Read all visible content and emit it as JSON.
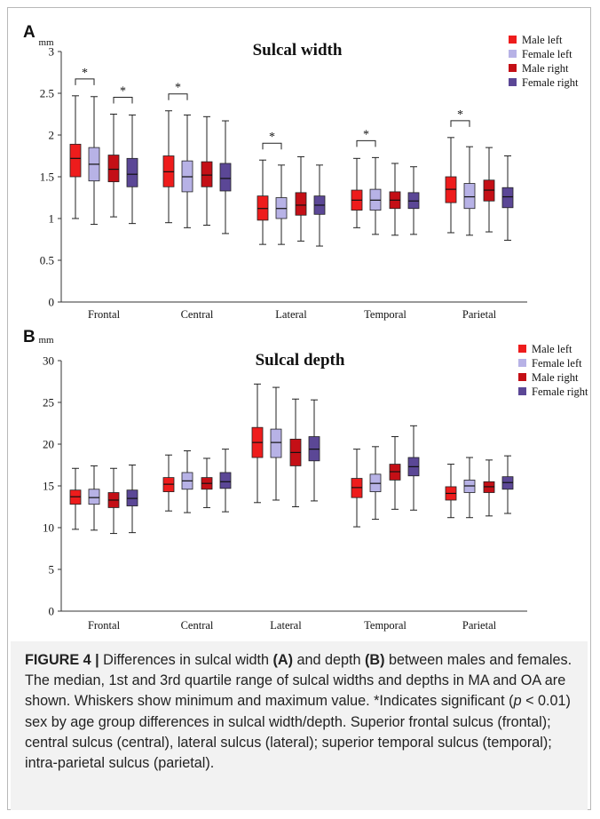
{
  "figure": {
    "panel_a_letter": "A",
    "panel_b_letter": "B",
    "caption": {
      "label": "FIGURE 4 |",
      "text_1": " Differences in sulcal width ",
      "bold_a": "(A)",
      "text_2": " and depth ",
      "bold_b": "(B)",
      "text_3": " between males and females. The median, 1st and 3rd quartile range of sulcal widths and depths in MA and OA are shown. Whiskers show minimum and maximum value. *Indicates significant (",
      "italic_p": "p",
      "text_4": " < 0.01) sex by age group differences in sulcal width/depth. Superior frontal sulcus (frontal); central sulcus (central), lateral sulcus (lateral); superior temporal sulcus (temporal); intra-parietal sulcus (parietal)."
    }
  },
  "chart_data": [
    {
      "type": "box",
      "title": "Sulcal width",
      "ylabel": "mm",
      "ylim": [
        0,
        3
      ],
      "yticks": [
        "0",
        "0.5",
        "1",
        "1.5",
        "2",
        "2.5",
        "3"
      ],
      "ytick_values": [
        0,
        0.5,
        1,
        1.5,
        2,
        2.5,
        3
      ],
      "categories": [
        "Frontal",
        "Central",
        "Lateral",
        "Temporal",
        "Parietal"
      ],
      "legend": {
        "placement": "top-right"
      },
      "significance_marker": "*",
      "series": [
        {
          "name": "Male left",
          "color": "#ee1c1c",
          "boxes": [
            {
              "min": 1.0,
              "q1": 1.5,
              "median": 1.72,
              "q3": 1.89,
              "max": 2.47
            },
            {
              "min": 0.95,
              "q1": 1.38,
              "median": 1.56,
              "q3": 1.75,
              "max": 2.29
            },
            {
              "min": 0.69,
              "q1": 0.98,
              "median": 1.12,
              "q3": 1.27,
              "max": 1.7
            },
            {
              "min": 0.89,
              "q1": 1.1,
              "median": 1.22,
              "q3": 1.34,
              "max": 1.72
            },
            {
              "min": 0.83,
              "q1": 1.19,
              "median": 1.35,
              "q3": 1.5,
              "max": 1.97
            }
          ]
        },
        {
          "name": "Female left",
          "color": "#b7b2e6",
          "boxes": [
            {
              "min": 0.93,
              "q1": 1.45,
              "median": 1.65,
              "q3": 1.85,
              "max": 2.46
            },
            {
              "min": 0.89,
              "q1": 1.32,
              "median": 1.5,
              "q3": 1.69,
              "max": 2.24
            },
            {
              "min": 0.69,
              "q1": 1.0,
              "median": 1.12,
              "q3": 1.25,
              "max": 1.64
            },
            {
              "min": 0.81,
              "q1": 1.1,
              "median": 1.22,
              "q3": 1.35,
              "max": 1.73
            },
            {
              "min": 0.8,
              "q1": 1.12,
              "median": 1.26,
              "q3": 1.42,
              "max": 1.86
            }
          ]
        },
        {
          "name": "Male right",
          "color": "#c40f16",
          "boxes": [
            {
              "min": 1.02,
              "q1": 1.44,
              "median": 1.59,
              "q3": 1.76,
              "max": 2.25
            },
            {
              "min": 0.92,
              "q1": 1.38,
              "median": 1.52,
              "q3": 1.68,
              "max": 2.22
            },
            {
              "min": 0.73,
              "q1": 1.04,
              "median": 1.16,
              "q3": 1.31,
              "max": 1.74
            },
            {
              "min": 0.8,
              "q1": 1.12,
              "median": 1.22,
              "q3": 1.32,
              "max": 1.66
            },
            {
              "min": 0.84,
              "q1": 1.21,
              "median": 1.34,
              "q3": 1.46,
              "max": 1.85
            }
          ]
        },
        {
          "name": "Female right",
          "color": "#5b4796",
          "boxes": [
            {
              "min": 0.94,
              "q1": 1.38,
              "median": 1.53,
              "q3": 1.72,
              "max": 2.24
            },
            {
              "min": 0.82,
              "q1": 1.33,
              "median": 1.48,
              "q3": 1.66,
              "max": 2.17
            },
            {
              "min": 0.67,
              "q1": 1.05,
              "median": 1.16,
              "q3": 1.27,
              "max": 1.64
            },
            {
              "min": 0.81,
              "q1": 1.12,
              "median": 1.21,
              "q3": 1.31,
              "max": 1.62
            },
            {
              "min": 0.74,
              "q1": 1.13,
              "median": 1.26,
              "q3": 1.37,
              "max": 1.75
            }
          ]
        }
      ],
      "significance": [
        {
          "category": 0,
          "pair": [
            0,
            1
          ]
        },
        {
          "category": 0,
          "pair": [
            2,
            3
          ]
        },
        {
          "category": 1,
          "pair": [
            0,
            1
          ]
        },
        {
          "category": 2,
          "pair": [
            0,
            1
          ]
        },
        {
          "category": 3,
          "pair": [
            0,
            1
          ]
        },
        {
          "category": 4,
          "pair": [
            0,
            1
          ]
        }
      ]
    },
    {
      "type": "box",
      "title": "Sulcal depth",
      "ylabel": "mm",
      "ylim": [
        0,
        30
      ],
      "yticks": [
        "0",
        "5",
        "10",
        "15",
        "20",
        "25",
        "30"
      ],
      "ytick_values": [
        0,
        5,
        10,
        15,
        20,
        25,
        30
      ],
      "categories": [
        "Frontal",
        "Central",
        "Lateral",
        "Temporal",
        "Parietal"
      ],
      "legend": {
        "placement": "top-right"
      },
      "series": [
        {
          "name": "Male left",
          "color": "#ee1c1c",
          "boxes": [
            {
              "min": 9.8,
              "q1": 12.8,
              "median": 13.7,
              "q3": 14.5,
              "max": 17.1
            },
            {
              "min": 12.0,
              "q1": 14.3,
              "median": 15.2,
              "q3": 16.0,
              "max": 18.7
            },
            {
              "min": 13.0,
              "q1": 18.4,
              "median": 20.2,
              "q3": 22.0,
              "max": 27.2
            },
            {
              "min": 10.1,
              "q1": 13.6,
              "median": 14.8,
              "q3": 15.9,
              "max": 19.4
            },
            {
              "min": 11.2,
              "q1": 13.3,
              "median": 14.1,
              "q3": 14.9,
              "max": 17.6
            }
          ]
        },
        {
          "name": "Female left",
          "color": "#b7b2e6",
          "boxes": [
            {
              "min": 9.7,
              "q1": 12.8,
              "median": 13.6,
              "q3": 14.6,
              "max": 17.4
            },
            {
              "min": 11.8,
              "q1": 14.6,
              "median": 15.6,
              "q3": 16.6,
              "max": 19.2
            },
            {
              "min": 13.3,
              "q1": 18.4,
              "median": 20.2,
              "q3": 21.8,
              "max": 26.8
            },
            {
              "min": 11.0,
              "q1": 14.3,
              "median": 15.3,
              "q3": 16.4,
              "max": 19.7
            },
            {
              "min": 11.2,
              "q1": 14.2,
              "median": 15.0,
              "q3": 15.7,
              "max": 18.4
            }
          ]
        },
        {
          "name": "Male right",
          "color": "#c40f16",
          "boxes": [
            {
              "min": 9.3,
              "q1": 12.4,
              "median": 13.3,
              "q3": 14.2,
              "max": 17.1
            },
            {
              "min": 12.4,
              "q1": 14.6,
              "median": 15.3,
              "q3": 16.0,
              "max": 18.3
            },
            {
              "min": 12.5,
              "q1": 17.4,
              "median": 19.0,
              "q3": 20.6,
              "max": 25.4
            },
            {
              "min": 12.2,
              "q1": 15.7,
              "median": 16.7,
              "q3": 17.6,
              "max": 20.9
            },
            {
              "min": 11.4,
              "q1": 14.2,
              "median": 14.9,
              "q3": 15.5,
              "max": 18.1
            }
          ]
        },
        {
          "name": "Female right",
          "color": "#5b4796",
          "boxes": [
            {
              "min": 9.4,
              "q1": 12.6,
              "median": 13.5,
              "q3": 14.5,
              "max": 17.5
            },
            {
              "min": 11.9,
              "q1": 14.7,
              "median": 15.5,
              "q3": 16.6,
              "max": 19.4
            },
            {
              "min": 13.2,
              "q1": 18.0,
              "median": 19.4,
              "q3": 20.9,
              "max": 25.3
            },
            {
              "min": 12.1,
              "q1": 16.2,
              "median": 17.3,
              "q3": 18.4,
              "max": 22.2
            },
            {
              "min": 11.7,
              "q1": 14.6,
              "median": 15.4,
              "q3": 16.1,
              "max": 18.6
            }
          ]
        }
      ],
      "significance": []
    }
  ]
}
